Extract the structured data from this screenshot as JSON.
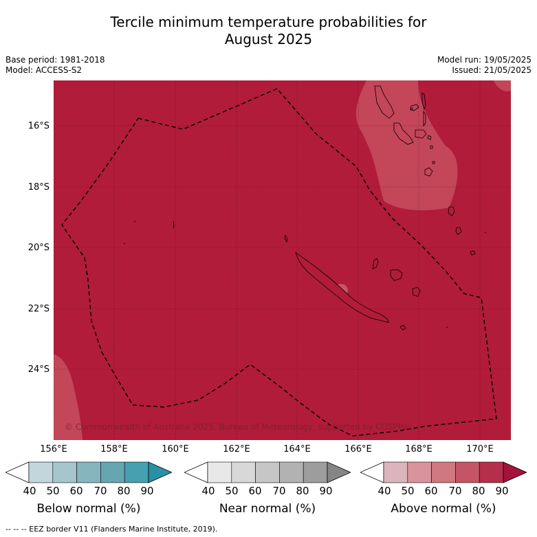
{
  "title_line1": "Tercile minimum temperature probabilities for",
  "title_line2": "August 2025",
  "base_period": "Base period: 1981-2018",
  "model": "Model: ACCESS-S2",
  "model_run": "Model run: 19/05/2025",
  "issued": "Issued: 21/05/2025",
  "copyright": "© Commonwealth of Australia 2025, Bureau of Meteorology, supported by COSPPac",
  "footnote": "--  --  -- EEZ border V11 (Flanders Marine Institute, 2019).",
  "lat_labels": [
    "16°S",
    "18°S",
    "20°S",
    "22°S",
    "24°S"
  ],
  "lon_labels": [
    "156°E",
    "158°E",
    "160°E",
    "162°E",
    "164°E",
    "166°E",
    "168°E",
    "170°E"
  ],
  "colorbars": [
    {
      "title": "Below normal (%)",
      "ticks": [
        "40",
        "50",
        "60",
        "70",
        "80",
        "90"
      ],
      "colors": [
        "#ffffff",
        "#c3d6db",
        "#a5c6cc",
        "#86b5bf",
        "#66a6b2",
        "#45a0b0",
        "#2a90a3"
      ]
    },
    {
      "title": "Near normal (%)",
      "ticks": [
        "40",
        "50",
        "60",
        "70",
        "80",
        "90"
      ],
      "colors": [
        "#ffffff",
        "#e8e8e8",
        "#d8d8d8",
        "#c6c6c6",
        "#b2b2b2",
        "#9d9d9d",
        "#858585"
      ]
    },
    {
      "title": "Above normal (%)",
      "ticks": [
        "40",
        "50",
        "60",
        "70",
        "80",
        "90"
      ],
      "colors": [
        "#ffffff",
        "#dcb4bc",
        "#d8939c",
        "#cf7880",
        "#c55566",
        "#b52f4b",
        "#a5123a"
      ]
    }
  ],
  "map_colors": {
    "dominant": "#b11c3a",
    "lighter": "#c34659",
    "lightest": "#d67a86"
  }
}
